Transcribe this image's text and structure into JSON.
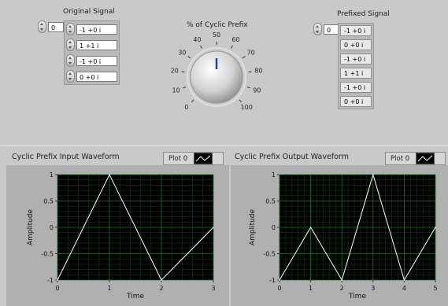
{
  "original_signal": {
    "title": "Original Signal",
    "index": "0",
    "elements": [
      "-1 +0 i",
      "1 +1 i",
      "-1 +0 i",
      "0 +0 i"
    ]
  },
  "knob": {
    "title": "% of Cyclic Prefix",
    "value_percent": 50,
    "ticks": [
      "0",
      "10",
      "20",
      "30",
      "40",
      "50",
      "60",
      "70",
      "80",
      "90",
      "100"
    ]
  },
  "prefixed_signal": {
    "title": "Prefixed Signal",
    "index": "0",
    "elements": [
      "-1 +0 i",
      "0 +0 i",
      "-1 +0 i",
      "1 +1 i",
      "-1 +0 i",
      "0 +0 i"
    ]
  },
  "input_graph": {
    "title": "Cyclic Prefix Input Waveform",
    "legend": "Plot 0",
    "xlabel": "Time",
    "ylabel": "Amplitude",
    "xticks": [
      "0",
      "1",
      "2",
      "3"
    ],
    "yticks": [
      "1",
      "0.5",
      "0",
      "-0.5",
      "-1"
    ]
  },
  "output_graph": {
    "title": "Cyclic Prefix Output Waveform",
    "legend": "Plot 0",
    "xlabel": "Time",
    "ylabel": "Amplitude",
    "xticks": [
      "0",
      "1",
      "2",
      "3",
      "4",
      "5"
    ],
    "yticks": [
      "1",
      "0.5",
      "0",
      "-0.5",
      "-1"
    ]
  },
  "chart_data": [
    {
      "type": "line",
      "x": [
        0,
        1,
        2,
        3
      ],
      "y": [
        -1,
        1,
        -1,
        0
      ],
      "xlim": [
        0,
        3
      ],
      "ylim": [
        -1,
        1
      ]
    },
    {
      "type": "line",
      "x": [
        0,
        1,
        2,
        3,
        4,
        5
      ],
      "y": [
        -1,
        0,
        -1,
        1,
        -1,
        0
      ],
      "xlim": [
        0,
        5
      ],
      "ylim": [
        -1,
        1
      ]
    }
  ]
}
